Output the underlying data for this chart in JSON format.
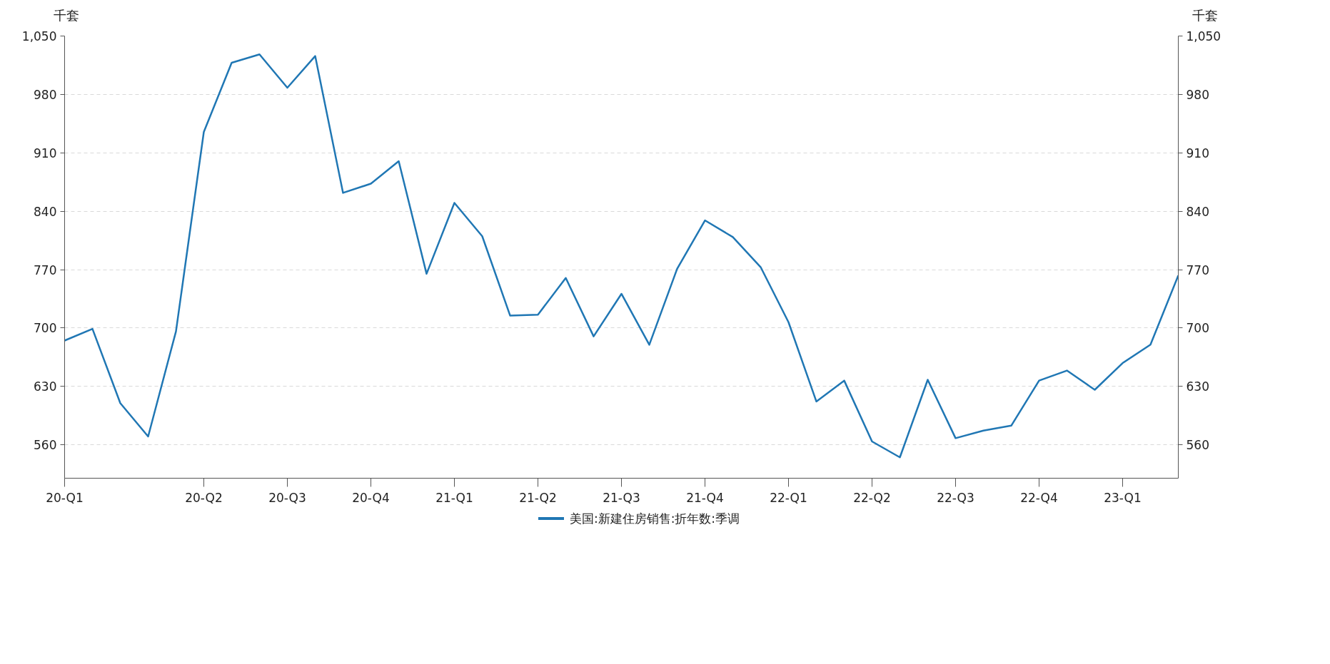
{
  "chart_data": {
    "type": "line",
    "ylabel": "千套",
    "y2label": "千套",
    "categories": [
      "20-Q1",
      null,
      null,
      null,
      null,
      "20-Q2",
      null,
      null,
      "20-Q3",
      null,
      null,
      "20-Q4",
      null,
      null,
      "21-Q1",
      null,
      null,
      "21-Q2",
      null,
      null,
      "21-Q3",
      null,
      null,
      "21-Q4",
      null,
      null,
      "22-Q1",
      null,
      null,
      "22-Q2",
      null,
      null,
      "22-Q3",
      null,
      null,
      "22-Q4",
      null,
      null,
      "23-Q1",
      null,
      null
    ],
    "series": [
      {
        "name": "美国:新建住房销售:折年数:季调",
        "color": "#2077b4",
        "values": [
          685,
          699,
          610,
          570,
          696,
          935,
          1018,
          1028,
          988,
          1026,
          862,
          873,
          900,
          765,
          850,
          810,
          715,
          716,
          760,
          690,
          741,
          680,
          771,
          829,
          809,
          773,
          707,
          612,
          637,
          564,
          545,
          638,
          568,
          577,
          583,
          637,
          649,
          626,
          658,
          680,
          763
        ]
      }
    ],
    "ylim": [
      520,
      1050
    ],
    "yticks": [
      560,
      630,
      700,
      770,
      840,
      910,
      980,
      {
        "value": 1050,
        "label": "1,050"
      }
    ],
    "y2lim": [
      520,
      1050
    ],
    "y2ticks": [
      560,
      630,
      700,
      770,
      840,
      910,
      980,
      {
        "value": 1050,
        "label": "1,050"
      }
    ],
    "grid": "y",
    "legend": "bottom",
    "line_style": "solid",
    "marker": "none"
  }
}
